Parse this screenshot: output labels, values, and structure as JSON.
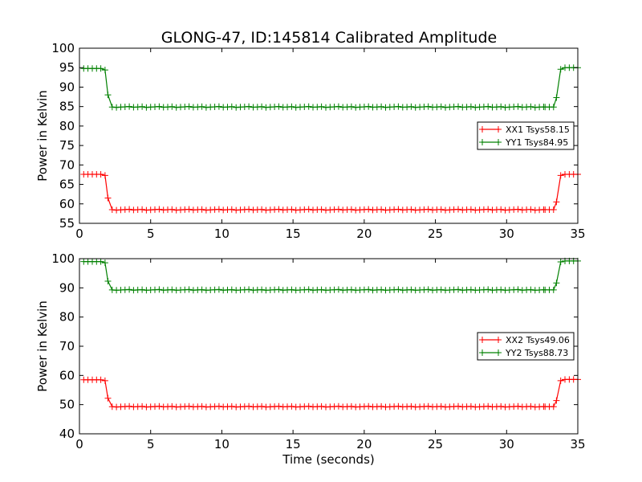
{
  "chart_data": [
    {
      "type": "line",
      "title": "GLONG-47, ID:145814 Calibrated Amplitude",
      "xlabel": "",
      "ylabel": "Power in Kelvin",
      "xlim": [
        0,
        35
      ],
      "ylim": [
        55,
        100
      ],
      "xticks": [
        0,
        5,
        10,
        15,
        20,
        25,
        30,
        35
      ],
      "yticks": [
        55,
        60,
        65,
        70,
        75,
        80,
        85,
        90,
        95,
        100
      ],
      "legend_position": "right",
      "series": [
        {
          "name": "XX1 Tsys58.15",
          "color": "#ff0000",
          "off_level": 67.6,
          "on_level": 58.5,
          "x": [
            0.3,
            0.6,
            0.9,
            1.2,
            1.5,
            1.8,
            2.0,
            2.3,
            32.7,
            33.0,
            33.3,
            33.5,
            33.8,
            34.1,
            34.4,
            34.7,
            35.0
          ],
          "y": [
            67.6,
            67.6,
            67.6,
            67.6,
            67.6,
            67.3,
            61.5,
            58.5,
            58.5,
            58.5,
            58.5,
            60.5,
            67.3,
            67.6,
            67.6,
            67.6,
            67.6
          ]
        },
        {
          "name": "YY1 Tsys84.95",
          "color": "#008000",
          "off_level": 94.8,
          "on_level": 84.9,
          "x": [
            0.3,
            0.6,
            0.9,
            1.2,
            1.5,
            1.8,
            2.0,
            2.3,
            32.7,
            33.0,
            33.3,
            33.5,
            33.8,
            34.1,
            34.4,
            34.7,
            35.0
          ],
          "y": [
            94.8,
            94.8,
            94.8,
            94.8,
            94.8,
            94.4,
            88.0,
            84.9,
            84.9,
            84.9,
            84.9,
            87.3,
            94.6,
            95.0,
            95.0,
            95.0,
            95.0
          ]
        }
      ]
    },
    {
      "type": "line",
      "title": "",
      "xlabel": "Time (seconds)",
      "ylabel": "Power in Kelvin",
      "xlim": [
        0,
        35
      ],
      "ylim": [
        40,
        100
      ],
      "xticks": [
        0,
        5,
        10,
        15,
        20,
        25,
        30,
        35
      ],
      "yticks": [
        40,
        50,
        60,
        70,
        80,
        90,
        100
      ],
      "legend_position": "right",
      "series": [
        {
          "name": "XX2 Tsys49.06",
          "color": "#ff0000",
          "off_level": 58.5,
          "on_level": 49.3,
          "x": [
            0.3,
            0.6,
            0.9,
            1.2,
            1.5,
            1.8,
            2.0,
            2.3,
            32.7,
            33.0,
            33.3,
            33.5,
            33.8,
            34.1,
            34.4,
            34.7,
            35.0
          ],
          "y": [
            58.5,
            58.5,
            58.5,
            58.5,
            58.5,
            58.2,
            52.2,
            49.3,
            49.3,
            49.3,
            49.3,
            51.4,
            58.2,
            58.6,
            58.6,
            58.6,
            58.6
          ]
        },
        {
          "name": "YY2 Tsys88.73",
          "color": "#008000",
          "off_level": 99.0,
          "on_level": 89.3,
          "x": [
            0.3,
            0.6,
            0.9,
            1.2,
            1.5,
            1.8,
            2.0,
            2.3,
            32.7,
            33.0,
            33.3,
            33.5,
            33.8,
            34.1,
            34.4,
            34.7,
            35.0
          ],
          "y": [
            99.0,
            99.0,
            99.0,
            99.0,
            99.0,
            98.6,
            92.3,
            89.3,
            89.3,
            89.3,
            89.3,
            91.7,
            98.9,
            99.2,
            99.2,
            99.2,
            99.2
          ]
        }
      ]
    }
  ]
}
